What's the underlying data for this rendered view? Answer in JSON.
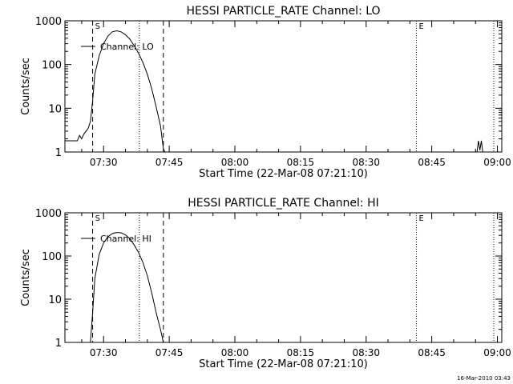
{
  "chart_data": [
    {
      "type": "line",
      "title": "HESSI PARTICLE_RATE Channel: LO",
      "xlabel": "Start Time (22-Mar-08 07:21:10)",
      "ylabel": "Counts/sec",
      "yscale": "log",
      "ylim": [
        1,
        1000
      ],
      "xlim": [
        "07:21:10",
        "09:01:00"
      ],
      "x_ticks": [
        "07:30",
        "07:45",
        "08:00",
        "08:15",
        "08:30",
        "08:45",
        "09:00"
      ],
      "y_ticks": [
        "1",
        "10",
        "100",
        "1000"
      ],
      "grid": false,
      "legend": {
        "position": "top-left",
        "entries": [
          "Channel: LO"
        ]
      },
      "markers": [
        {
          "label": "S",
          "time": "07:27:30",
          "style": "dashed"
        },
        {
          "label": "",
          "time": "07:38:10",
          "style": "dotted"
        },
        {
          "label": "",
          "time": "07:43:40",
          "style": "dashed"
        },
        {
          "label": "E",
          "time": "08:41:30",
          "style": "dotted"
        },
        {
          "label": "",
          "time": "08:59:10",
          "style": "dotted"
        }
      ],
      "series": [
        {
          "name": "Channel: LO",
          "points": [
            [
              "07:21:10",
              1.8
            ],
            [
              "07:24:00",
              1.8
            ],
            [
              "07:24:30",
              2.4
            ],
            [
              "07:25:00",
              2.0
            ],
            [
              "07:25:30",
              2.6
            ],
            [
              "07:26:00",
              3.0
            ],
            [
              "07:26:30",
              3.5
            ],
            [
              "07:27:00",
              5
            ],
            [
              "07:27:30",
              15
            ],
            [
              "07:28:00",
              60
            ],
            [
              "07:29:00",
              160
            ],
            [
              "07:30:00",
              300
            ],
            [
              "07:31:00",
              450
            ],
            [
              "07:32:00",
              560
            ],
            [
              "07:33:00",
              590
            ],
            [
              "07:34:00",
              560
            ],
            [
              "07:35:00",
              480
            ],
            [
              "07:36:00",
              380
            ],
            [
              "07:37:00",
              270
            ],
            [
              "07:38:00",
              180
            ],
            [
              "07:39:00",
              110
            ],
            [
              "07:40:00",
              60
            ],
            [
              "07:41:00",
              28
            ],
            [
              "07:42:00",
              11
            ],
            [
              "07:43:00",
              4
            ],
            [
              "07:43:40",
              1.2
            ],
            [
              "07:44:00",
              1
            ]
          ],
          "late_spike": [
            [
              "08:55:20",
              1
            ],
            [
              "08:55:40",
              1.8
            ],
            [
              "08:56:00",
              1.1
            ],
            [
              "08:56:20",
              1.8
            ],
            [
              "08:56:40",
              1
            ]
          ]
        }
      ]
    },
    {
      "type": "line",
      "title": "HESSI PARTICLE_RATE Channel: HI",
      "xlabel": "Start Time (22-Mar-08 07:21:10)",
      "ylabel": "Counts/sec",
      "yscale": "log",
      "ylim": [
        1,
        1000
      ],
      "xlim": [
        "07:21:10",
        "09:01:00"
      ],
      "x_ticks": [
        "07:30",
        "07:45",
        "08:00",
        "08:15",
        "08:30",
        "08:45",
        "09:00"
      ],
      "y_ticks": [
        "1",
        "10",
        "100",
        "1000"
      ],
      "grid": false,
      "legend": {
        "position": "top-left",
        "entries": [
          "Channel: HI"
        ]
      },
      "markers": [
        {
          "label": "S",
          "time": "07:27:30",
          "style": "dashed"
        },
        {
          "label": "",
          "time": "07:38:10",
          "style": "dotted"
        },
        {
          "label": "",
          "time": "07:43:40",
          "style": "dashed"
        },
        {
          "label": "E",
          "time": "08:41:30",
          "style": "dotted"
        },
        {
          "label": "",
          "time": "08:59:10",
          "style": "dotted"
        }
      ],
      "series": [
        {
          "name": "Channel: HI",
          "points": [
            [
              "07:27:00",
              1
            ],
            [
              "07:27:30",
              5
            ],
            [
              "07:28:00",
              30
            ],
            [
              "07:29:00",
              110
            ],
            [
              "07:30:00",
              200
            ],
            [
              "07:31:00",
              280
            ],
            [
              "07:32:00",
              330
            ],
            [
              "07:33:00",
              350
            ],
            [
              "07:34:00",
              345
            ],
            [
              "07:35:00",
              310
            ],
            [
              "07:36:00",
              250
            ],
            [
              "07:37:00",
              180
            ],
            [
              "07:38:00",
              120
            ],
            [
              "07:39:00",
              70
            ],
            [
              "07:40:00",
              35
            ],
            [
              "07:41:00",
              14
            ],
            [
              "07:42:00",
              5
            ],
            [
              "07:43:00",
              2
            ],
            [
              "07:43:40",
              1
            ]
          ]
        }
      ]
    }
  ],
  "footer": {
    "timestamp": "16-Mar-2010 03:43"
  }
}
